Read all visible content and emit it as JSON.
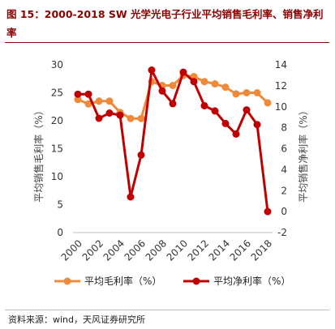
{
  "header": {
    "title": "图 15：2000-2018 SW 光学光电子行业平均销售毛利率、销售净利率"
  },
  "footer": {
    "source": "资料来源：wind，天风证券研究所"
  },
  "colors": {
    "gross": "#ef8a3a",
    "net": "#c00000"
  },
  "chart_data": {
    "type": "line",
    "title": "图 15：2000-2018 SW 光学光电子行业平均销售毛利率、销售净利率",
    "x": [
      2000,
      2001,
      2002,
      2003,
      2004,
      2005,
      2006,
      2007,
      2008,
      2009,
      2010,
      2011,
      2012,
      2013,
      2014,
      2015,
      2016,
      2017,
      2018
    ],
    "x_tick_labels": [
      "2000",
      "2002",
      "2004",
      "2006",
      "2008",
      "2010",
      "2012",
      "2014",
      "2016",
      "2018"
    ],
    "ylabel_left": "平均销售毛利率（%）",
    "ylabel_right": "平均销售净利率（%）",
    "ylim_left": [
      0,
      30
    ],
    "yticks_left": [
      "0",
      "5",
      "10",
      "15",
      "20",
      "25",
      "30"
    ],
    "ylim_right": [
      -2,
      14
    ],
    "yticks_right": [
      "-2",
      "0",
      "2",
      "4",
      "6",
      "8",
      "10",
      "12",
      "14"
    ],
    "series": [
      {
        "name": "平均毛利率（%）",
        "axis": "left",
        "values": [
          23.8,
          23.0,
          23.5,
          23.5,
          21.5,
          20.4,
          20.4,
          27.0,
          26.3,
          26.3,
          28.1,
          27.9,
          27.0,
          26.6,
          26.0,
          24.8,
          25.0,
          25.0,
          23.2
        ]
      },
      {
        "name": "平均净利率（%）",
        "axis": "right",
        "values": [
          11.2,
          11.2,
          8.9,
          9.4,
          9.2,
          1.4,
          5.4,
          13.5,
          11.5,
          10.3,
          13.3,
          12.4,
          10.1,
          9.6,
          8.4,
          7.4,
          9.7,
          8.3,
          0.0
        ]
      }
    ],
    "grid": false,
    "legend_position": "bottom"
  }
}
